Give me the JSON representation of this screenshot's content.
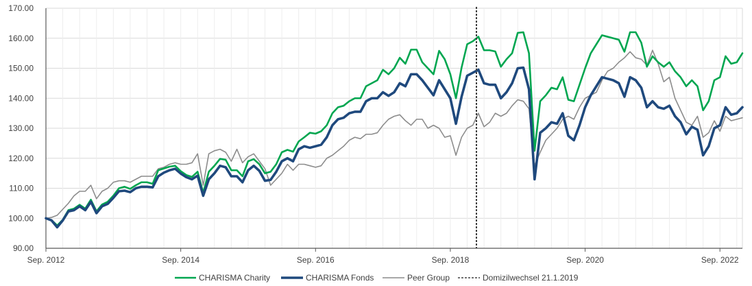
{
  "chart_data": {
    "type": "line",
    "title": "",
    "xlabel": "",
    "ylabel": "",
    "x_range": [
      "2012-09",
      "2023-01"
    ],
    "ylim": [
      90,
      170
    ],
    "y_ticks": [
      "90.00",
      "100.00",
      "110.00",
      "120.00",
      "130.00",
      "140.00",
      "150.00",
      "160.00",
      "170.00"
    ],
    "x_ticks": [
      {
        "date": "2012-09",
        "label": "Sep. 2012"
      },
      {
        "date": "2014-09",
        "label": "Sep. 2014"
      },
      {
        "date": "2016-09",
        "label": "Sep. 2016"
      },
      {
        "date": "2018-09",
        "label": "Sep. 2018"
      },
      {
        "date": "2020-09",
        "label": "Sep. 2020"
      },
      {
        "date": "2022-09",
        "label": "Sep. 2022"
      }
    ],
    "grid": {
      "horizontal": true,
      "vertical": true
    },
    "legend_position": "bottom",
    "x": [
      "2012-09",
      "2012-10",
      "2012-11",
      "2012-12",
      "2013-01",
      "2013-02",
      "2013-03",
      "2013-04",
      "2013-05",
      "2013-06",
      "2013-07",
      "2013-08",
      "2013-09",
      "2013-10",
      "2013-11",
      "2013-12",
      "2014-01",
      "2014-02",
      "2014-03",
      "2014-04",
      "2014-05",
      "2014-06",
      "2014-07",
      "2014-08",
      "2014-09",
      "2014-10",
      "2014-11",
      "2014-12",
      "2015-01",
      "2015-02",
      "2015-03",
      "2015-04",
      "2015-05",
      "2015-06",
      "2015-07",
      "2015-08",
      "2015-09",
      "2015-10",
      "2015-11",
      "2015-12",
      "2016-01",
      "2016-02",
      "2016-03",
      "2016-04",
      "2016-05",
      "2016-06",
      "2016-07",
      "2016-08",
      "2016-09",
      "2016-10",
      "2016-11",
      "2016-12",
      "2017-01",
      "2017-02",
      "2017-03",
      "2017-04",
      "2017-05",
      "2017-06",
      "2017-07",
      "2017-08",
      "2017-09",
      "2017-10",
      "2017-11",
      "2017-12",
      "2018-01",
      "2018-02",
      "2018-03",
      "2018-04",
      "2018-05",
      "2018-06",
      "2018-07",
      "2018-08",
      "2018-09",
      "2018-10",
      "2018-11",
      "2018-12",
      "2019-01",
      "2019-02",
      "2019-03",
      "2019-04",
      "2019-05",
      "2019-06",
      "2019-07",
      "2019-08",
      "2019-09",
      "2019-10",
      "2019-11",
      "2019-12",
      "2020-01",
      "2020-02",
      "2020-03",
      "2020-04",
      "2020-05",
      "2020-06",
      "2020-07",
      "2020-08",
      "2020-09",
      "2020-10",
      "2020-11",
      "2020-12",
      "2021-01",
      "2021-02",
      "2021-03",
      "2021-04",
      "2021-05",
      "2021-06",
      "2021-07",
      "2021-08",
      "2021-09",
      "2021-10",
      "2021-11",
      "2021-12",
      "2022-01",
      "2022-02",
      "2022-03",
      "2022-04",
      "2022-05",
      "2022-06",
      "2022-07",
      "2022-08",
      "2022-09",
      "2022-10",
      "2022-11",
      "2022-12",
      "2023-01"
    ],
    "series": [
      {
        "name": "CHARISMA Charity",
        "color": "#00A650",
        "values": [
          100.0,
          99.4,
          97.6,
          99.5,
          102.7,
          103.2,
          104.5,
          103.2,
          106.2,
          102.3,
          104.6,
          105.5,
          107.5,
          110.0,
          110.5,
          109.8,
          111.0,
          112.0,
          112.0,
          111.5,
          116.0,
          116.6,
          117.2,
          117.5,
          115.7,
          114.4,
          113.8,
          115.5,
          108.5,
          115.5,
          117.5,
          119.8,
          119.5,
          116.0,
          116.0,
          114.0,
          119.0,
          119.7,
          118.0,
          115.0,
          115.5,
          118.0,
          122.0,
          122.8,
          122.2,
          125.6,
          127.0,
          128.5,
          128.2,
          129.0,
          131.0,
          135.0,
          137.0,
          137.5,
          139.0,
          140.0,
          140.0,
          144.0,
          145.0,
          146.0,
          149.5,
          148.0,
          150.0,
          153.5,
          151.5,
          156.2,
          156.2,
          152.0,
          150.0,
          148.0,
          155.8,
          153.0,
          148.0,
          140.0,
          150.2,
          158.0,
          159.0,
          160.5,
          156.0,
          156.0,
          155.6,
          150.5,
          153.0,
          155.0,
          161.8,
          162.0,
          155.0,
          122.5,
          139.0,
          141.0,
          143.5,
          143.0,
          147.0,
          139.5,
          139.0,
          144.5,
          150.0,
          155.0,
          158.0,
          161.0,
          160.5,
          160.0,
          159.5,
          155.5,
          162.0,
          162.0,
          158.5,
          150.5,
          154.0,
          152.0,
          150.5,
          152.0,
          149.0,
          147.0,
          144.0,
          146.0,
          144.0,
          136.0,
          139.0,
          146.0,
          147.0,
          154.0,
          151.5,
          152.0,
          155.0
        ]
      },
      {
        "name": "CHARISMA Fonds",
        "color": "#1F497D",
        "values": [
          100.0,
          99.3,
          97.0,
          99.3,
          102.3,
          102.7,
          104.0,
          102.7,
          105.5,
          101.7,
          104.0,
          104.8,
          106.8,
          109.0,
          109.2,
          108.7,
          110.0,
          110.5,
          110.5,
          110.3,
          114.0,
          115.2,
          116.0,
          116.5,
          114.9,
          113.7,
          113.0,
          114.2,
          107.5,
          113.0,
          115.0,
          117.5,
          117.0,
          114.0,
          114.0,
          112.0,
          116.0,
          117.5,
          115.8,
          112.5,
          112.8,
          115.5,
          119.0,
          120.0,
          119.0,
          123.0,
          124.0,
          123.5,
          124.0,
          124.5,
          127.0,
          131.0,
          133.0,
          133.5,
          135.0,
          135.5,
          135.5,
          139.0,
          140.0,
          140.0,
          142.0,
          140.8,
          142.0,
          145.0,
          144.0,
          148.0,
          148.0,
          146.0,
          143.5,
          141.0,
          146.0,
          143.0,
          140.0,
          131.5,
          140.5,
          147.5,
          148.5,
          149.5,
          145.0,
          144.5,
          144.5,
          140.0,
          142.0,
          145.0,
          150.0,
          150.2,
          143.0,
          113.0,
          128.5,
          130.0,
          132.0,
          131.5,
          135.0,
          127.5,
          126.0,
          131.0,
          137.0,
          141.0,
          144.0,
          147.0,
          146.5,
          146.0,
          145.0,
          140.5,
          147.0,
          146.0,
          143.5,
          137.0,
          139.0,
          137.0,
          136.5,
          137.5,
          134.0,
          132.0,
          128.0,
          130.5,
          129.5,
          121.0,
          124.0,
          130.0,
          131.0,
          137.0,
          134.5,
          135.0,
          137.0
        ]
      },
      {
        "name": "Peer Group",
        "color": "#8C8C8C",
        "values": [
          100.0,
          100.3,
          101.0,
          103.0,
          105.0,
          107.5,
          109.0,
          109.0,
          111.0,
          106.5,
          109.0,
          110.0,
          112.0,
          112.5,
          112.5,
          112.0,
          113.0,
          114.0,
          114.0,
          114.0,
          116.5,
          117.0,
          118.0,
          118.5,
          118.0,
          118.0,
          118.5,
          121.5,
          111.0,
          121.5,
          122.5,
          123.0,
          122.0,
          119.0,
          123.0,
          118.5,
          120.5,
          121.5,
          119.0,
          116.5,
          111.0,
          113.0,
          115.0,
          118.0,
          116.0,
          118.0,
          118.0,
          117.5,
          117.0,
          117.5,
          120.0,
          121.0,
          122.5,
          124.0,
          126.0,
          127.0,
          126.5,
          128.0,
          128.0,
          128.5,
          131.0,
          133.0,
          134.0,
          134.5,
          132.5,
          131.0,
          133.0,
          133.0,
          130.0,
          131.0,
          130.0,
          127.0,
          127.5,
          121.0,
          127.0,
          130.0,
          131.0,
          135.0,
          130.5,
          132.0,
          135.0,
          134.0,
          135.0,
          137.5,
          139.5,
          139.0,
          136.5,
          117.5,
          122.0,
          126.0,
          128.0,
          130.0,
          133.0,
          134.0,
          133.0,
          137.0,
          140.0,
          141.0,
          142.0,
          146.0,
          149.0,
          150.0,
          152.0,
          153.5,
          155.5,
          153.5,
          153.0,
          151.0,
          156.0,
          151.5,
          145.5,
          147.0,
          140.0,
          136.0,
          132.0,
          131.0,
          134.0,
          127.0,
          128.5,
          132.5,
          129.0,
          134.0,
          132.5,
          133.0,
          133.5
        ]
      }
    ],
    "vertical_marker": {
      "name": "Domizilwechsel 21.1.2019",
      "date": "2019-01-21",
      "style": "dashed",
      "color": "#404040"
    }
  },
  "legend": {
    "items": [
      {
        "label": "CHARISMA Charity",
        "color": "#00A650"
      },
      {
        "label": "CHARISMA Fonds",
        "color": "#1F497D"
      },
      {
        "label": "Peer Group",
        "color": "#8C8C8C"
      },
      {
        "label": "Domizilwechsel 21.1.2019",
        "color": "#404040"
      }
    ]
  }
}
